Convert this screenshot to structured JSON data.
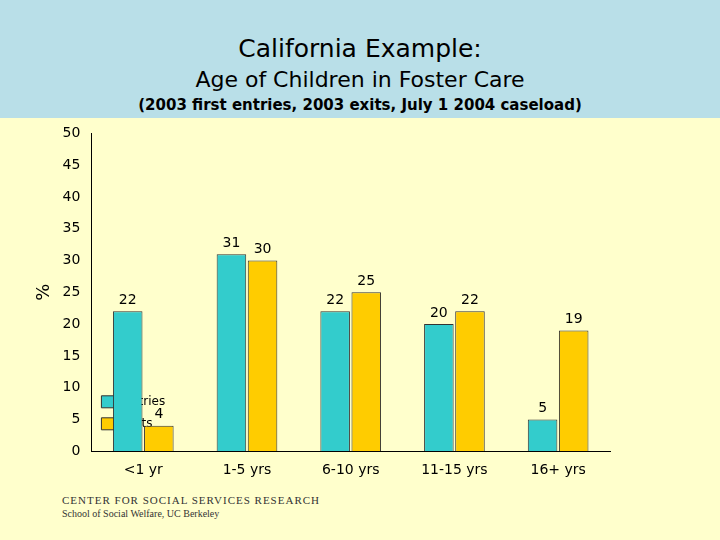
{
  "chart_data": {
    "type": "bar",
    "title": "California Example:",
    "subtitle": [
      "Age of Children in Foster Care",
      "(2003 first entries, 2003 exits, July 1 2004 caseload)"
    ],
    "y_label": "%",
    "categories": [
      "<1 yr",
      "1-5 yrs",
      "6-10 yrs",
      "11-15 yrs",
      "16+ yrs"
    ],
    "series": [
      {
        "name": "Entries",
        "color": "#33cccc",
        "values": [
          22,
          31,
          22,
          20,
          5
        ]
      },
      {
        "name": "Exits",
        "color": "#ffcc00",
        "values": [
          4,
          30,
          25,
          22,
          19
        ]
      }
    ],
    "ylim": [
      0,
      50
    ],
    "yticks": [
      0,
      5,
      10,
      15,
      20,
      25,
      30,
      35,
      40,
      45,
      50
    ],
    "grid": false,
    "legend": "upper right",
    "data_labels": true,
    "annotations": [
      "CENTER FOR SOCIAL SERVICES RESEARCH",
      "School of Social Welfare, UC Berkeley"
    ]
  }
}
